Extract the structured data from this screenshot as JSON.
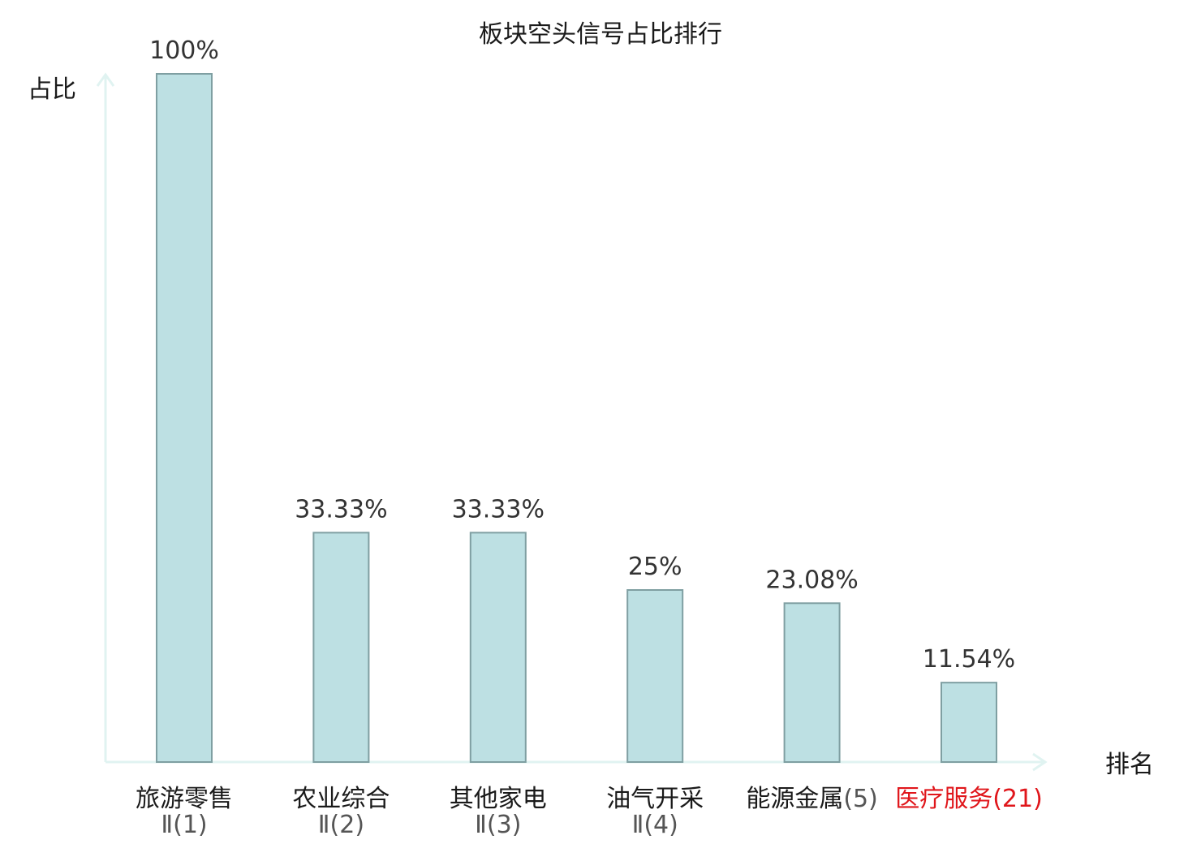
{
  "chart_data": {
    "type": "bar",
    "title": "板块空头信号占比排行",
    "ylabel": "占比",
    "xlabel": "排名",
    "ylim": [
      0,
      100
    ],
    "categories": [
      {
        "line1": "旅游零售",
        "line2": "Ⅱ(1)",
        "highlight": false
      },
      {
        "line1": "农业综合",
        "line2": "Ⅱ(2)",
        "highlight": false
      },
      {
        "line1": "其他家电",
        "line2": "Ⅱ(3)",
        "highlight": false
      },
      {
        "line1": "油气开采",
        "line2": "Ⅱ(4)",
        "highlight": false
      },
      {
        "line1": "能源金属",
        "line2": "(5)",
        "highlight": false
      },
      {
        "line1": "医疗服务",
        "line2": "(21)",
        "highlight": true
      }
    ],
    "values": [
      100,
      33.33,
      33.33,
      25,
      23.08,
      11.54
    ],
    "value_labels": [
      "100%",
      "33.33%",
      "33.33%",
      "25%",
      "23.08%",
      "11.54%"
    ],
    "grid": false,
    "colors": {
      "bar_fill": "#bde0e3",
      "bar_stroke": "#7f9fa2",
      "axis": "#e0f3f1",
      "text": "#1a1a1a",
      "value_text": "#333333",
      "sub_text": "#555555",
      "highlight": "#e0161b"
    }
  }
}
